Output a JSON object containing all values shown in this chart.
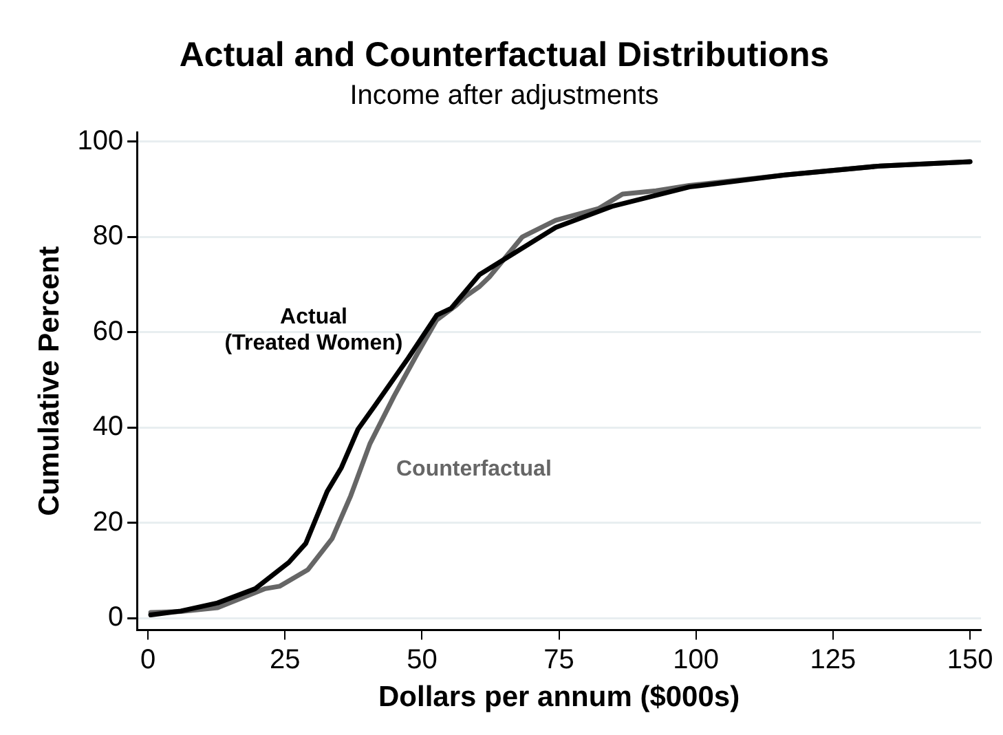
{
  "chart_data": {
    "type": "line",
    "title": "Actual and Counterfactual Distributions",
    "subtitle": "Income after adjustments",
    "xlabel": "Dollars per annum ($000s)",
    "ylabel": "Cumulative Percent",
    "xlim": [
      -2,
      152
    ],
    "ylim": [
      -2.5,
      102
    ],
    "xticks": [
      0,
      25,
      50,
      75,
      100,
      125,
      150
    ],
    "yticks": [
      0,
      20,
      40,
      60,
      80,
      100
    ],
    "grid": "y",
    "legend": false,
    "marker": "none",
    "line_style": "solid",
    "series": [
      {
        "name": "Actual\n(Treated Women)",
        "color": "#000000",
        "x": [
          0.5,
          6,
          12.7,
          19.6,
          25.7,
          28.8,
          32.7,
          35.3,
          38.3,
          41.4,
          47.5,
          52.7,
          55.3,
          60.5,
          64,
          74.4,
          84.9,
          98.8,
          116.2,
          133.6,
          150
        ],
        "values": [
          0.7,
          1.5,
          3.2,
          6.2,
          11.7,
          15.7,
          26.6,
          31.6,
          39.6,
          44.6,
          54.6,
          63.6,
          65,
          72.1,
          74.6,
          82,
          86.5,
          90.5,
          93,
          94.9,
          95.8
        ]
      },
      {
        "name": "Counterfactual",
        "color": "#666666",
        "x": [
          0.5,
          6,
          12.7,
          21.4,
          24,
          29.2,
          33.6,
          37,
          40.5,
          44.9,
          49.2,
          52.7,
          56.2,
          57.9,
          60.5,
          62.3,
          68.3,
          74.4,
          82.3,
          86.6,
          92.7,
          98.8,
          116.2,
          133.6,
          150
        ],
        "values": [
          1.2,
          1.4,
          2.2,
          6.2,
          6.7,
          10.2,
          16.7,
          25.7,
          36.6,
          46.6,
          55.6,
          62.6,
          65.6,
          67.5,
          69.6,
          71.6,
          80,
          83.5,
          86,
          89,
          89.7,
          90.8,
          93,
          94.9,
          95.8
        ]
      }
    ]
  }
}
